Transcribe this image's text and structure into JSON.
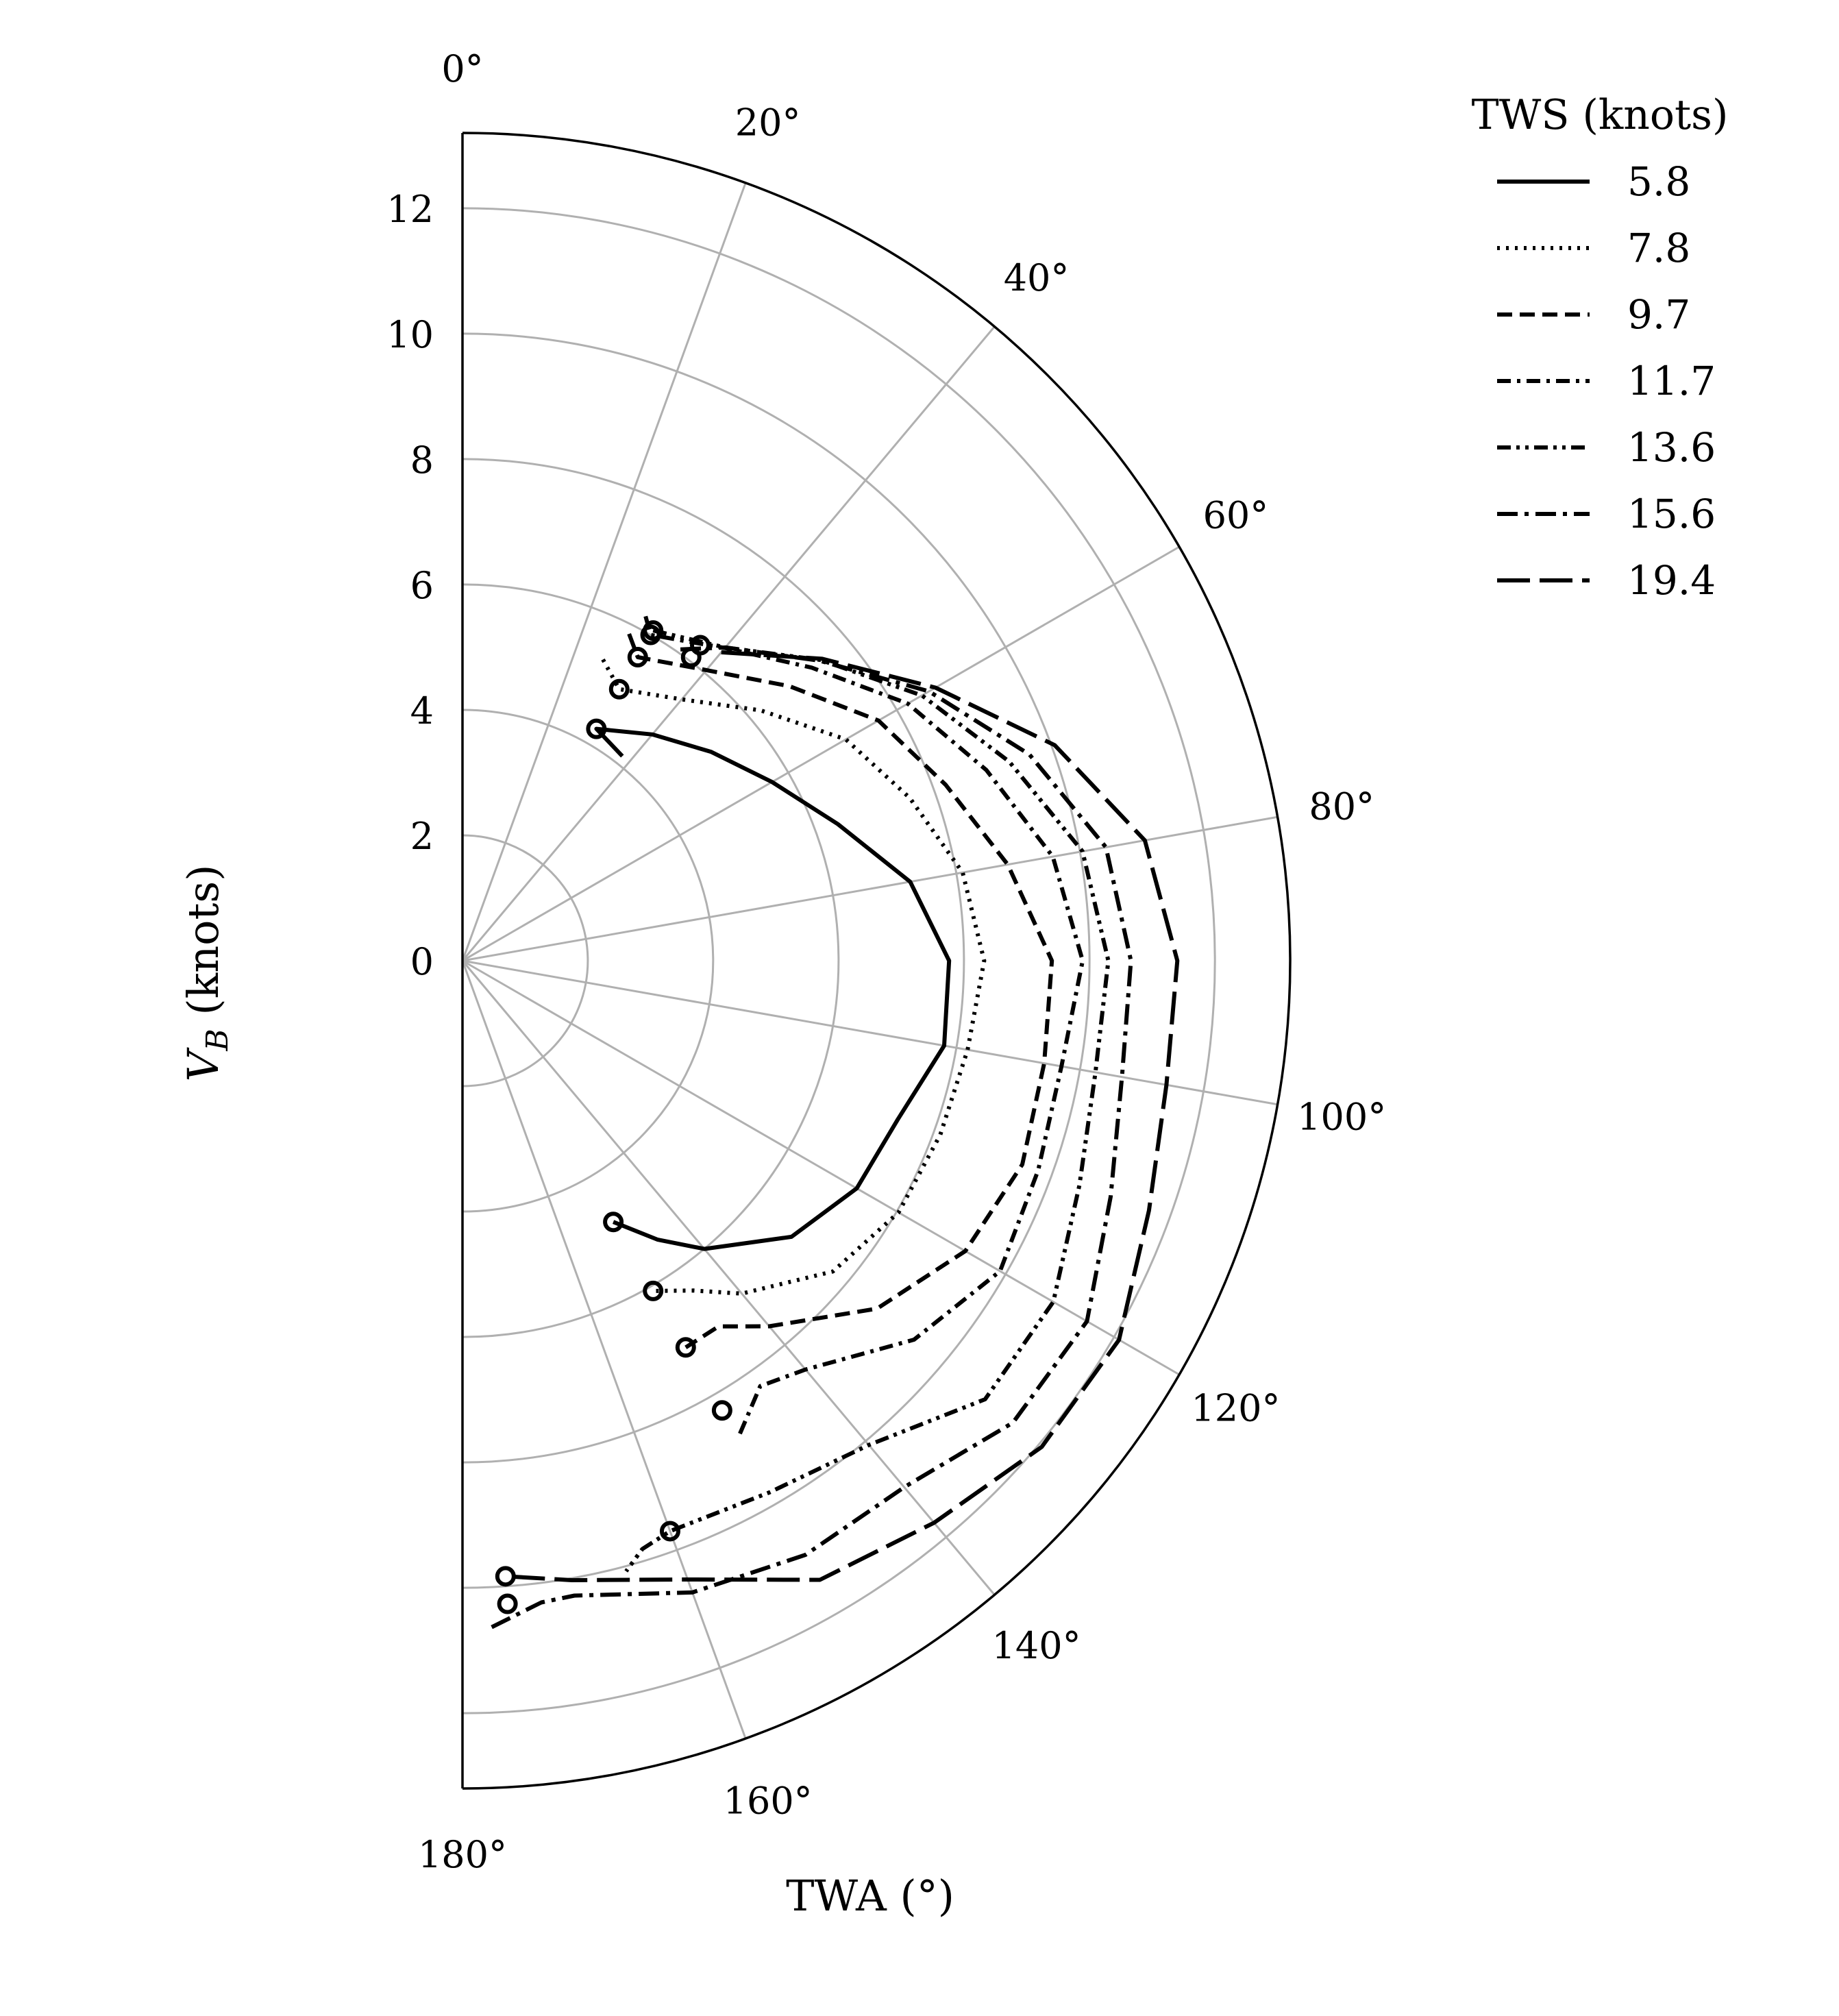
{
  "chart_data": {
    "type": "polar-line",
    "xlabel": "TWA (°)",
    "ylabel": "V_B (knots)",
    "ylabel_main": "V",
    "ylabel_sub": "B",
    "ylabel_rest": " (knots)",
    "theta_range": [
      0,
      180
    ],
    "r_range": [
      0,
      13.2
    ],
    "theta_ticks": [
      "0°",
      "20°",
      "40°",
      "60°",
      "80°",
      "100°",
      "120°",
      "140°",
      "160°",
      "180°"
    ],
    "theta_tick_values": [
      0,
      20,
      40,
      60,
      80,
      100,
      120,
      140,
      160,
      180
    ],
    "r_ticks": [
      "0",
      "2",
      "4",
      "6",
      "8",
      "10",
      "12"
    ],
    "r_tick_values": [
      0,
      2,
      4,
      6,
      8,
      10,
      12
    ],
    "grid": true,
    "legend": {
      "title": "TWS (knots)",
      "placement": "upper-right-outside"
    },
    "series": [
      {
        "name": "5.8",
        "dash": "solid",
        "points": [
          [
            38,
            4.14
          ],
          [
            30,
            4.27
          ],
          [
            40,
            4.71
          ],
          [
            50,
            5.18
          ],
          [
            60,
            5.7
          ],
          [
            70,
            6.37
          ],
          [
            80,
            7.25
          ],
          [
            90,
            7.76
          ],
          [
            100,
            7.8
          ],
          [
            110,
            7.39
          ],
          [
            120,
            7.26
          ],
          [
            130,
            6.85
          ],
          [
            140,
            6.0
          ],
          [
            145,
            5.43
          ],
          [
            150,
            4.81
          ]
        ],
        "markers": [
          [
            30,
            4.27
          ],
          [
            150,
            4.81
          ]
        ]
      },
      {
        "name": "7.8",
        "dash": "dotted",
        "points": [
          [
            25,
            5.3
          ],
          [
            30,
            5.0
          ],
          [
            40,
            5.44
          ],
          [
            50,
            6.21
          ],
          [
            60,
            7.06
          ],
          [
            70,
            7.59
          ],
          [
            80,
            8.1
          ],
          [
            90,
            8.32
          ],
          [
            100,
            8.18
          ],
          [
            110,
            8.11
          ],
          [
            120,
            8.03
          ],
          [
            130,
            7.71
          ],
          [
            140,
            6.93
          ],
          [
            145,
            6.42
          ],
          [
            150,
            6.08
          ]
        ],
        "markers": [
          [
            30,
            5.0
          ],
          [
            150,
            6.08
          ]
        ]
      },
      {
        "name": "9.7",
        "dash": "dashed",
        "points": [
          [
            27,
            5.85
          ],
          [
            30,
            5.59
          ],
          [
            40,
            6.05
          ],
          [
            50,
            6.81
          ],
          [
            60,
            7.66
          ],
          [
            70,
            8.2
          ],
          [
            80,
            8.83
          ],
          [
            90,
            9.4
          ],
          [
            100,
            9.42
          ],
          [
            110,
            9.5
          ],
          [
            120,
            9.26
          ],
          [
            130,
            8.63
          ],
          [
            140,
            7.61
          ],
          [
            145,
            7.12
          ],
          [
            150,
            7.12
          ]
        ],
        "markers": [
          [
            30,
            5.59
          ],
          [
            150,
            7.12
          ]
        ]
      },
      {
        "name": "11.7",
        "dash": "dashdot",
        "points": [
          [
            28,
            6.22
          ],
          [
            30,
            6.0
          ],
          [
            40,
            6.51
          ],
          [
            50,
            7.27
          ],
          [
            60,
            8.2
          ],
          [
            70,
            8.89
          ],
          [
            80,
            9.56
          ],
          [
            90,
            9.89
          ],
          [
            100,
            9.7
          ],
          [
            110,
            9.77
          ],
          [
            120,
            9.9
          ],
          [
            130,
            9.4
          ],
          [
            140,
            8.51
          ],
          [
            145,
            8.28
          ],
          [
            150,
            8.79
          ]
        ],
        "markers": [
          [
            30,
            6.0
          ],
          [
            150,
            8.28
          ]
        ]
      },
      {
        "name": "13.6",
        "dash": "dashdotdot",
        "points": [
          [
            30,
            6.08
          ],
          [
            40,
            6.52
          ],
          [
            50,
            7.46
          ],
          [
            60,
            8.46
          ],
          [
            70,
            9.28
          ],
          [
            80,
            10.04
          ],
          [
            90,
            10.3
          ],
          [
            100,
            10.25
          ],
          [
            110,
            10.47
          ],
          [
            120,
            10.88
          ],
          [
            130,
            10.88
          ],
          [
            140,
            10.08
          ],
          [
            150,
            9.79
          ],
          [
            160,
            9.68
          ],
          [
            163,
            9.81
          ],
          [
            165,
            10.08
          ]
        ],
        "markers": [
          [
            30,
            6.08
          ],
          [
            160,
            9.68
          ]
        ]
      },
      {
        "name": "15.6",
        "dash": "longdashdot",
        "points": [
          [
            35,
            6.06
          ],
          [
            40,
            6.52
          ],
          [
            50,
            7.44
          ],
          [
            60,
            8.59
          ],
          [
            70,
            9.62
          ],
          [
            80,
            10.42
          ],
          [
            90,
            10.66
          ],
          [
            100,
            10.68
          ],
          [
            110,
            11.0
          ],
          [
            120,
            11.5
          ],
          [
            130,
            11.46
          ],
          [
            140,
            10.96
          ],
          [
            150,
            10.94
          ],
          [
            160,
            10.72
          ],
          [
            170,
            10.28
          ],
          [
            173,
            10.31
          ],
          [
            178,
            10.68
          ]
        ],
        "markers": [
          [
            37,
            6.06
          ],
          [
            176,
            10.28
          ]
        ]
      },
      {
        "name": "19.4",
        "dash": "longdash",
        "points": [
          [
            40,
            6.42
          ],
          [
            50,
            7.49
          ],
          [
            60,
            8.71
          ],
          [
            70,
            10.05
          ],
          [
            80,
            11.05
          ],
          [
            90,
            11.4
          ],
          [
            100,
            11.4
          ],
          [
            110,
            11.65
          ],
          [
            120,
            12.09
          ],
          [
            130,
            12.06
          ],
          [
            140,
            11.7
          ],
          [
            150,
            11.4
          ],
          [
            160,
            10.5
          ],
          [
            170,
            10.03
          ],
          [
            176,
            9.84
          ]
        ],
        "markers": [
          [
            37,
            6.3
          ],
          [
            176,
            9.84
          ]
        ]
      }
    ]
  }
}
